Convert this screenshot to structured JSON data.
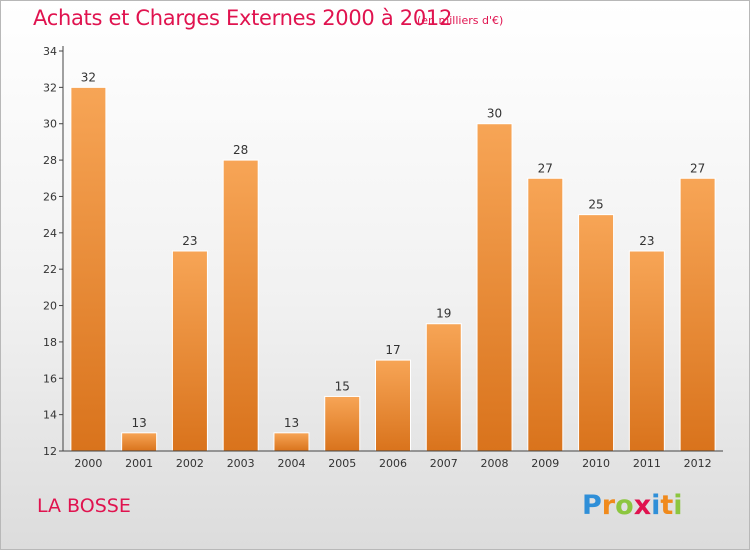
{
  "header": {
    "title": "Achats et Charges Externes 2000 à 2012",
    "subtitle": "(en milliers d'€)"
  },
  "commune": "LA BOSSE",
  "logo": {
    "text": "Proxiti",
    "letters": [
      {
        "ch": "P",
        "color": "#2f8fd8"
      },
      {
        "ch": "r",
        "color": "#f08a1c"
      },
      {
        "ch": "o",
        "color": "#8cc63f"
      },
      {
        "ch": "x",
        "color": "#e0134f"
      },
      {
        "ch": "i",
        "color": "#2f8fd8"
      },
      {
        "ch": "t",
        "color": "#f08a1c"
      },
      {
        "ch": "i",
        "color": "#8cc63f"
      }
    ]
  },
  "colors": {
    "accent": "#e0134f",
    "bar_top": "#f7a556",
    "bar_bottom": "#d9731c"
  },
  "chart_data": {
    "type": "bar",
    "title": "Achats et Charges Externes 2000 à 2012",
    "subtitle": "(en milliers d'€)",
    "categories": [
      "2000",
      "2001",
      "2002",
      "2003",
      "2004",
      "2005",
      "2006",
      "2007",
      "2008",
      "2009",
      "2010",
      "2011",
      "2012"
    ],
    "values": [
      32,
      13,
      23,
      28,
      13,
      15,
      17,
      19,
      30,
      27,
      25,
      23,
      27
    ],
    "ylim": [
      12,
      34
    ],
    "yticks": [
      12,
      14,
      16,
      18,
      20,
      22,
      24,
      26,
      28,
      30,
      32,
      34
    ],
    "grid": false,
    "data_labels": true
  }
}
